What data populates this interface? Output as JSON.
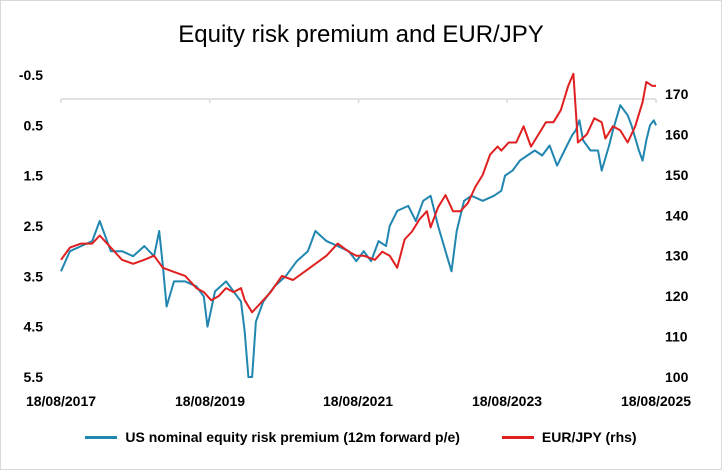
{
  "chart_data": {
    "type": "line",
    "title": "Equity risk premium and EUR/JPY",
    "x_ticks": [
      "18/08/2017",
      "18/08/2019",
      "18/08/2021",
      "18/08/2023",
      "18/08/2025"
    ],
    "y_left": {
      "ticks": [
        "-0.5",
        "0.5",
        "1.5",
        "2.5",
        "3.5",
        "4.5",
        "5.5"
      ],
      "range": [
        -0.5,
        5.5
      ],
      "inverted": true
    },
    "y_right": {
      "ticks": [
        "170",
        "160",
        "150",
        "140",
        "130",
        "120",
        "110",
        "100"
      ],
      "range": [
        100,
        175
      ]
    },
    "x_range_years": [
      2017.63,
      2025.63
    ],
    "series": [
      {
        "name": "US nominal equity risk premium (12m forward p/e)",
        "axis": "left",
        "color": "#2186b0",
        "points": [
          [
            2017.63,
            3.4
          ],
          [
            2017.75,
            3.0
          ],
          [
            2017.9,
            2.9
          ],
          [
            2018.05,
            2.8
          ],
          [
            2018.15,
            2.4
          ],
          [
            2018.3,
            3.0
          ],
          [
            2018.45,
            3.0
          ],
          [
            2018.6,
            3.1
          ],
          [
            2018.75,
            2.9
          ],
          [
            2018.88,
            3.1
          ],
          [
            2018.95,
            2.6
          ],
          [
            2019.0,
            3.3
          ],
          [
            2019.05,
            4.1
          ],
          [
            2019.15,
            3.6
          ],
          [
            2019.3,
            3.6
          ],
          [
            2019.45,
            3.7
          ],
          [
            2019.55,
            3.9
          ],
          [
            2019.6,
            4.5
          ],
          [
            2019.7,
            3.8
          ],
          [
            2019.85,
            3.6
          ],
          [
            2019.95,
            3.8
          ],
          [
            2020.05,
            4.0
          ],
          [
            2020.1,
            4.6
          ],
          [
            2020.15,
            5.5
          ],
          [
            2020.2,
            5.5
          ],
          [
            2020.25,
            4.4
          ],
          [
            2020.35,
            4.0
          ],
          [
            2020.5,
            3.7
          ],
          [
            2020.65,
            3.5
          ],
          [
            2020.8,
            3.2
          ],
          [
            2020.95,
            3.0
          ],
          [
            2021.05,
            2.6
          ],
          [
            2021.2,
            2.8
          ],
          [
            2021.35,
            2.9
          ],
          [
            2021.5,
            3.0
          ],
          [
            2021.6,
            3.2
          ],
          [
            2021.7,
            3.0
          ],
          [
            2021.8,
            3.2
          ],
          [
            2021.9,
            2.8
          ],
          [
            2022.0,
            2.9
          ],
          [
            2022.05,
            2.5
          ],
          [
            2022.15,
            2.2
          ],
          [
            2022.3,
            2.1
          ],
          [
            2022.4,
            2.4
          ],
          [
            2022.5,
            2.0
          ],
          [
            2022.6,
            1.9
          ],
          [
            2022.7,
            2.5
          ],
          [
            2022.8,
            3.0
          ],
          [
            2022.88,
            3.4
          ],
          [
            2022.95,
            2.6
          ],
          [
            2023.05,
            2.0
          ],
          [
            2023.15,
            1.9
          ],
          [
            2023.3,
            2.0
          ],
          [
            2023.45,
            1.9
          ],
          [
            2023.55,
            1.8
          ],
          [
            2023.6,
            1.5
          ],
          [
            2023.7,
            1.4
          ],
          [
            2023.8,
            1.2
          ],
          [
            2023.9,
            1.1
          ],
          [
            2024.0,
            1.0
          ],
          [
            2024.1,
            1.1
          ],
          [
            2024.2,
            0.9
          ],
          [
            2024.3,
            1.3
          ],
          [
            2024.4,
            1.0
          ],
          [
            2024.5,
            0.7
          ],
          [
            2024.55,
            0.6
          ],
          [
            2024.6,
            0.4
          ],
          [
            2024.65,
            0.8
          ],
          [
            2024.75,
            1.0
          ],
          [
            2024.85,
            1.0
          ],
          [
            2024.9,
            1.4
          ],
          [
            2025.0,
            0.9
          ],
          [
            2025.05,
            0.6
          ],
          [
            2025.15,
            0.1
          ],
          [
            2025.25,
            0.3
          ],
          [
            2025.3,
            0.5
          ],
          [
            2025.4,
            1.0
          ],
          [
            2025.45,
            1.2
          ],
          [
            2025.5,
            0.8
          ],
          [
            2025.55,
            0.5
          ],
          [
            2025.6,
            0.4
          ],
          [
            2025.63,
            0.5
          ]
        ]
      },
      {
        "name": "EUR/JPY (rhs)",
        "axis": "right",
        "color": "#e02020",
        "points": [
          [
            2017.63,
            129
          ],
          [
            2017.75,
            132
          ],
          [
            2017.9,
            133
          ],
          [
            2018.05,
            133
          ],
          [
            2018.15,
            135
          ],
          [
            2018.3,
            132
          ],
          [
            2018.45,
            129
          ],
          [
            2018.6,
            128
          ],
          [
            2018.75,
            129
          ],
          [
            2018.88,
            130
          ],
          [
            2019.0,
            127
          ],
          [
            2019.15,
            126
          ],
          [
            2019.3,
            125
          ],
          [
            2019.45,
            122
          ],
          [
            2019.55,
            121
          ],
          [
            2019.65,
            119
          ],
          [
            2019.75,
            120
          ],
          [
            2019.85,
            122
          ],
          [
            2019.95,
            121
          ],
          [
            2020.05,
            122
          ],
          [
            2020.1,
            119
          ],
          [
            2020.2,
            116
          ],
          [
            2020.3,
            118
          ],
          [
            2020.45,
            121
          ],
          [
            2020.6,
            125
          ],
          [
            2020.75,
            124
          ],
          [
            2020.9,
            126
          ],
          [
            2021.05,
            128
          ],
          [
            2021.2,
            130
          ],
          [
            2021.35,
            133
          ],
          [
            2021.5,
            131
          ],
          [
            2021.6,
            130
          ],
          [
            2021.7,
            130
          ],
          [
            2021.85,
            129
          ],
          [
            2021.95,
            131
          ],
          [
            2022.05,
            130
          ],
          [
            2022.15,
            127
          ],
          [
            2022.25,
            134
          ],
          [
            2022.35,
            136
          ],
          [
            2022.45,
            139
          ],
          [
            2022.55,
            141
          ],
          [
            2022.6,
            137
          ],
          [
            2022.7,
            142
          ],
          [
            2022.8,
            145
          ],
          [
            2022.9,
            141
          ],
          [
            2023.0,
            141
          ],
          [
            2023.1,
            143
          ],
          [
            2023.2,
            147
          ],
          [
            2023.3,
            150
          ],
          [
            2023.4,
            155
          ],
          [
            2023.5,
            157
          ],
          [
            2023.55,
            156
          ],
          [
            2023.65,
            158
          ],
          [
            2023.75,
            158
          ],
          [
            2023.8,
            160
          ],
          [
            2023.85,
            162
          ],
          [
            2023.95,
            157
          ],
          [
            2024.05,
            160
          ],
          [
            2024.15,
            163
          ],
          [
            2024.25,
            163
          ],
          [
            2024.35,
            166
          ],
          [
            2024.45,
            172
          ],
          [
            2024.52,
            175
          ],
          [
            2024.58,
            158
          ],
          [
            2024.7,
            160
          ],
          [
            2024.8,
            164
          ],
          [
            2024.9,
            163
          ],
          [
            2024.95,
            159
          ],
          [
            2025.05,
            162
          ],
          [
            2025.15,
            161
          ],
          [
            2025.25,
            158
          ],
          [
            2025.35,
            162
          ],
          [
            2025.45,
            168
          ],
          [
            2025.5,
            173
          ],
          [
            2025.58,
            172
          ],
          [
            2025.63,
            172
          ]
        ]
      }
    ]
  },
  "legend": {
    "items": [
      {
        "label": "US nominal equity risk premium (12m forward p/e)",
        "color": "#2186b0"
      },
      {
        "label": "EUR/JPY (rhs)",
        "color": "#e02020"
      }
    ]
  }
}
